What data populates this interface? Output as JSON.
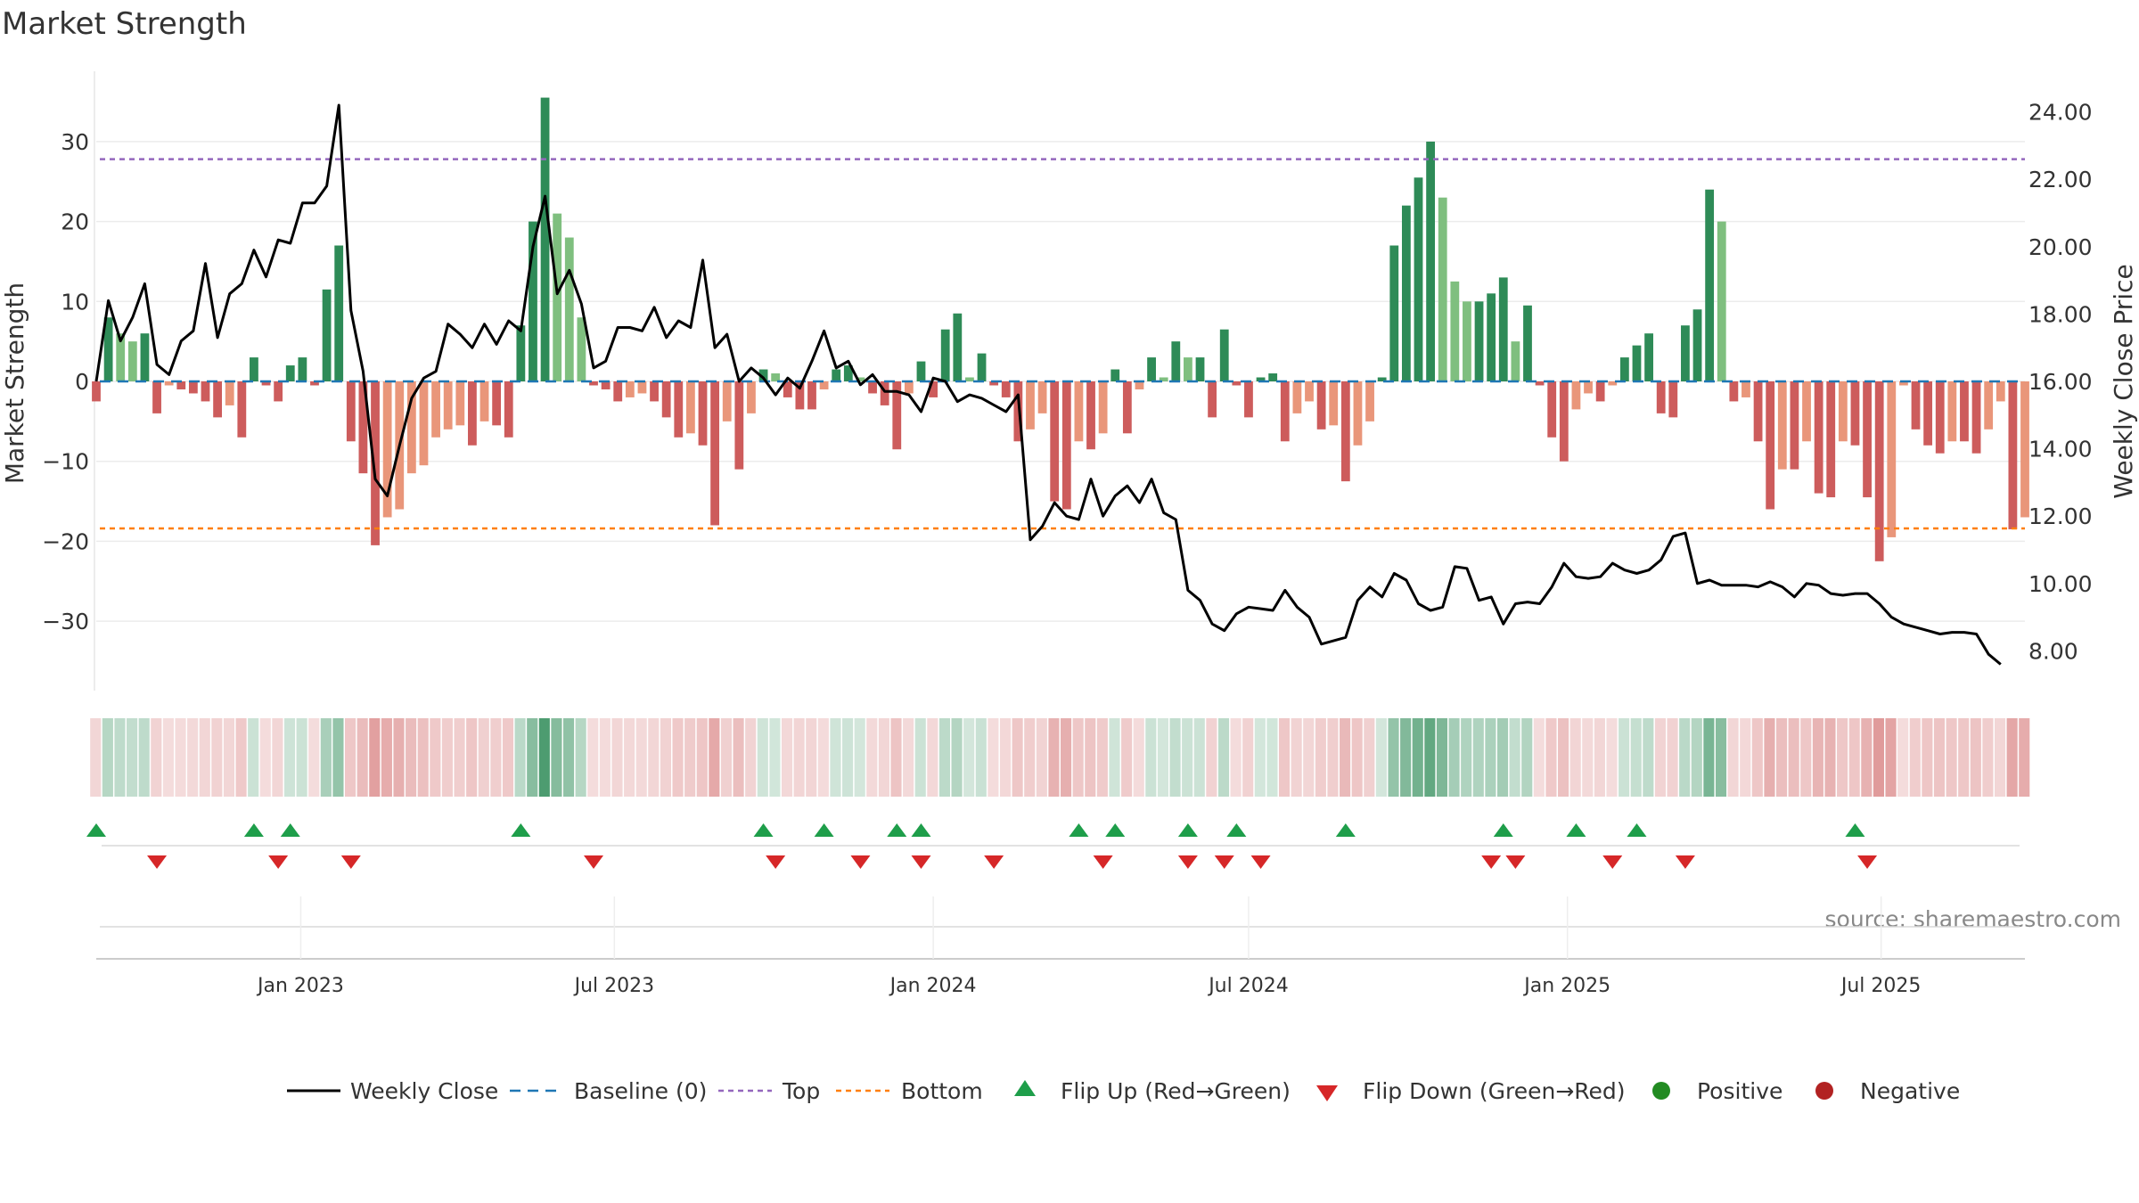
{
  "chart_data": {
    "type": "bar",
    "title": "Market Strength",
    "source": "source: sharemaestro.com",
    "y_left": {
      "label": "Market Strength",
      "range": [
        -39,
        39
      ],
      "ticks": [
        30,
        20,
        10,
        0,
        -10,
        -20,
        -30
      ],
      "tick_labels": [
        "30",
        "20",
        "10",
        "0",
        "−10",
        "−20",
        "−30"
      ]
    },
    "y_right": {
      "label": "Weekly Close Price",
      "range": [
        6.87,
        25.37
      ],
      "ticks": [
        8,
        10,
        12,
        14,
        16,
        18,
        20,
        22,
        24
      ],
      "tick_labels": [
        "8.00",
        "10.00",
        "12.00",
        "14.00",
        "16.00",
        "18.00",
        "20.00",
        "22.00",
        "24.00"
      ]
    },
    "x_axis": {
      "range": [
        "2022-09-05",
        "2025-09-22"
      ],
      "ticks": [
        "2023-01-01",
        "2023-07-01",
        "2024-01-01",
        "2024-07-01",
        "2025-01-01",
        "2025-07-01"
      ],
      "tick_labels": [
        "Jan 2023",
        "Jul 2023",
        "Jan 2024",
        "Jul 2024",
        "Jan 2025",
        "Jul 2025"
      ]
    },
    "top_line": 27.8,
    "bottom_line": -18.4,
    "baseline": 0,
    "start_date": "2022-09-05",
    "weekly_strength": [
      -2.5,
      8,
      6,
      5,
      6,
      -4,
      -0.5,
      -1,
      -1.5,
      -2.5,
      -4.5,
      -3,
      -7,
      3,
      -0.5,
      -2.5,
      2,
      3,
      -0.5,
      11.5,
      17,
      -7.5,
      -11.5,
      -20.5,
      -17,
      -16,
      -11.5,
      -10.5,
      -7,
      -6,
      -5.5,
      -8,
      -5,
      -5.5,
      -7,
      7,
      20,
      35.5,
      21,
      18,
      8,
      -0.5,
      -1,
      -2.5,
      -2,
      -1.5,
      -2.5,
      -4.5,
      -7,
      -6.5,
      -8,
      -18,
      -5,
      -11,
      -4,
      1.5,
      1,
      -2,
      -3.5,
      -3.5,
      -1,
      1.5,
      2,
      0.5,
      -1.5,
      -3,
      -8.5,
      -1.5,
      2.5,
      -2,
      6.5,
      8.5,
      0.5,
      3.5,
      -0.5,
      -2,
      -7.5,
      -6,
      -4,
      -15,
      -16,
      -7.5,
      -8.5,
      -6.5,
      1.5,
      -6.5,
      -1,
      3,
      0.5,
      5,
      3,
      3,
      -4.5,
      6.5,
      -0.5,
      -4.5,
      0.5,
      1,
      -7.5,
      -4,
      -2.5,
      -6,
      -5.5,
      -12.5,
      -8,
      -5,
      0.5,
      17,
      22,
      25.5,
      30,
      23,
      12.5,
      10,
      10,
      11,
      13,
      5,
      9.5,
      -0.5,
      -7,
      -10,
      -3.5,
      -1.5,
      -2.5,
      -0.5,
      3,
      4.5,
      6,
      -4,
      -4.5,
      7,
      9,
      24,
      20,
      -2.5,
      -2,
      -7.5,
      -16,
      -11,
      -11,
      -7.5,
      -14,
      -14.5,
      -7.5,
      -8,
      -14.5,
      -22.5,
      -19.5,
      -0.5,
      -6,
      -8,
      -9,
      -7.5,
      -7.5,
      -9,
      -6,
      -2.5,
      -18.5,
      -17
    ],
    "weekly_close": [
      16,
      18.4,
      17.2,
      17.9,
      18.9,
      16.5,
      16.2,
      17.2,
      17.5,
      19.5,
      17.3,
      18.6,
      18.9,
      19.9,
      19.1,
      20.2,
      20.1,
      21.3,
      21.3,
      21.8,
      24.2,
      18.1,
      16.3,
      13.1,
      12.6,
      14.1,
      15.5,
      16.1,
      16.3,
      17.7,
      17.4,
      17,
      17.7,
      17.1,
      17.8,
      17.5,
      20,
      21.5,
      18.6,
      19.3,
      18.3,
      16.4,
      16.6,
      17.6,
      17.6,
      17.5,
      18.2,
      17.3,
      17.8,
      17.6,
      19.6,
      17,
      17.4,
      16,
      16.4,
      16.1,
      15.6,
      16.1,
      15.8,
      16.6,
      17.5,
      16.4,
      16.6,
      15.9,
      16.2,
      15.7,
      15.7,
      15.6,
      15.1,
      16.1,
      16,
      15.4,
      15.6,
      15.5,
      15.3,
      15.1,
      15.6,
      11.3,
      11.7,
      12.4,
      12,
      11.9,
      13.1,
      12,
      12.6,
      12.9,
      12.4,
      13.1,
      12.1,
      11.9,
      9.8,
      9.5,
      8.8,
      8.6,
      9.1,
      9.3,
      9.25,
      9.2,
      9.8,
      9.3,
      9,
      8.2,
      8.3,
      8.4,
      9.5,
      9.9,
      9.6,
      10.3,
      10.1,
      9.4,
      9.2,
      9.3,
      10.5,
      10.45,
      9.5,
      9.6,
      8.8,
      9.4,
      9.45,
      9.4,
      9.9,
      10.6,
      10.2,
      10.15,
      10.2,
      10.6,
      10.4,
      10.3,
      10.4,
      10.7,
      11.4,
      11.5,
      10,
      10.1,
      9.95,
      9.95,
      9.95,
      9.9,
      10.05,
      9.9,
      9.6,
      10,
      9.95,
      9.7,
      9.65,
      9.7,
      9.7,
      9.4,
      9,
      8.8,
      8.7,
      8.6,
      8.5,
      8.55,
      8.55,
      8.5,
      7.9,
      7.6
    ],
    "flip_up_weeks": [
      0,
      13,
      16,
      35,
      55,
      60,
      66,
      68,
      81,
      84,
      90,
      94,
      103,
      116,
      122,
      127,
      145
    ],
    "flip_down_weeks": [
      5,
      15,
      21,
      41,
      56,
      63,
      68,
      74,
      83,
      90,
      93,
      96,
      115,
      117,
      125,
      131,
      146
    ],
    "legend": [
      "Weekly Close",
      "Baseline (0)",
      "Top",
      "Bottom",
      "Flip Up (Red→Green)",
      "Flip Down (Green→Red)",
      "Positive",
      "Negative"
    ],
    "colors": {
      "positive_strong": "#2e8b57",
      "positive_light": "#7fbf7f",
      "negative_strong": "#cd5c5c",
      "negative_light": "#e9967a",
      "line": "#000000",
      "baseline": "#1f77b4",
      "top": "#9467bd",
      "bottom": "#ff7f0e",
      "flip_up": "#1e9e4a",
      "flip_down": "#d62728",
      "positive_dot": "#228b22",
      "negative_dot": "#b22222"
    }
  }
}
